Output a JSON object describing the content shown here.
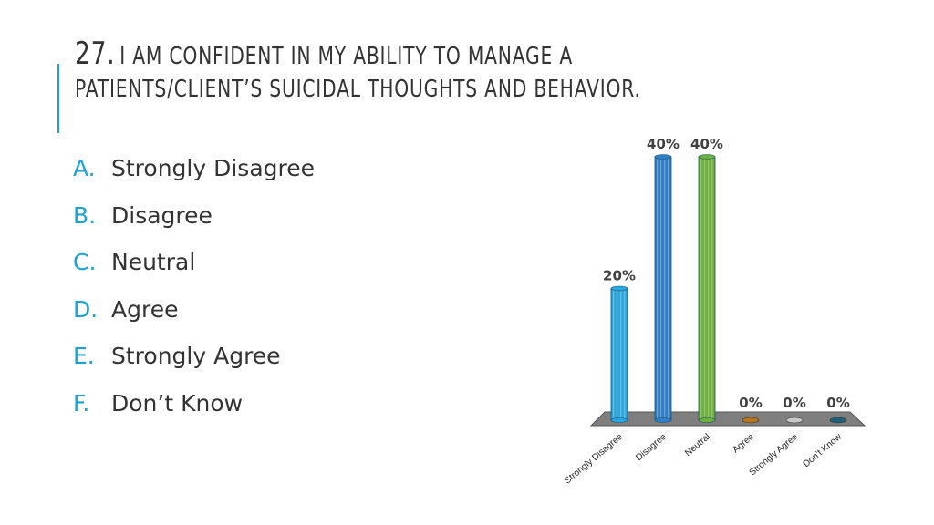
{
  "slide": {
    "number": "27.",
    "question_line1": "I am confident in my ability to manage a",
    "question_line2": "patients/client’s suicidal thoughts and behavior.",
    "options": [
      {
        "letter": "A.",
        "label": "Strongly Disagree"
      },
      {
        "letter": "B.",
        "label": "Disagree"
      },
      {
        "letter": "C.",
        "label": "Neutral"
      },
      {
        "letter": "D.",
        "label": "Agree"
      },
      {
        "letter": "E.",
        "label": "Strongly Agree"
      },
      {
        "letter": "F.",
        "label": "Don’t Know"
      }
    ],
    "accent_color": "#1ba1d6"
  },
  "chart_data": {
    "type": "bar",
    "categories": [
      "Strongly Disagree",
      "Disagree",
      "Neutral",
      "Agree",
      "Strongly Agree",
      "Don’t Know"
    ],
    "values": [
      20,
      40,
      40,
      0,
      0,
      0
    ],
    "value_labels": [
      "20%",
      "40%",
      "40%",
      "0%",
      "0%",
      "0%"
    ],
    "unit": "%",
    "ylim": [
      0,
      40
    ],
    "grid": false,
    "legend": "none",
    "colors": [
      "#29a8e0",
      "#2e7fc8",
      "#6cb23a",
      "#b8741f",
      "#c8c8c8",
      "#1f5f7a"
    ],
    "floor_color": "#7f7f7f"
  }
}
